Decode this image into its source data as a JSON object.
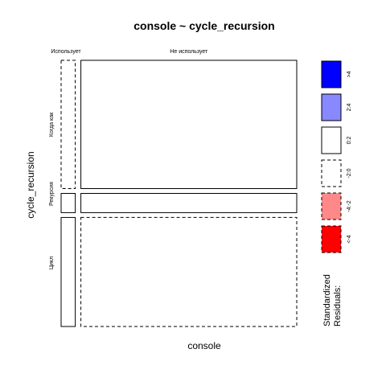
{
  "chart_data": {
    "type": "mosaic",
    "title": "console ~ cycle_recursion",
    "xlabel": "console",
    "ylabel": "cycle_recursion",
    "columns": [
      {
        "label": "Использует",
        "share": 0.068
      },
      {
        "label": "Не использует",
        "share": 0.932
      }
    ],
    "rows": [
      {
        "label": "Когда как",
        "share": 0.5
      },
      {
        "label": "Рекурсия",
        "share": 0.075
      },
      {
        "label": "Цикл",
        "share": 0.425
      }
    ],
    "cells": [
      {
        "row": "Когда как",
        "column": "Использует",
        "residual_class": "-2:0"
      },
      {
        "row": "Когда как",
        "column": "Не использует",
        "residual_class": "0:2"
      },
      {
        "row": "Рекурсия",
        "column": "Использует",
        "residual_class": "0:2"
      },
      {
        "row": "Рекурсия",
        "column": "Не использует",
        "residual_class": "0:2"
      },
      {
        "row": "Цикл",
        "column": "Использует",
        "residual_class": "0:2"
      },
      {
        "row": "Цикл",
        "column": "Не использует",
        "residual_class": "-2:0"
      }
    ],
    "legend": {
      "title_line1": "Standardized",
      "title_line2": "Residuals:",
      "placement": "right",
      "items": [
        {
          "label": ">4",
          "color": "#0000ff",
          "dashed": false
        },
        {
          "label": "2:4",
          "color": "#8888ff",
          "dashed": false
        },
        {
          "label": "0:2",
          "color": "#ffffff",
          "dashed": false
        },
        {
          "label": "-2:0",
          "color": "#ffffff",
          "dashed": true
        },
        {
          "label": "-4:-2",
          "color": "#ff8888",
          "dashed": true
        },
        {
          "label": "<-4",
          "color": "#ff0000",
          "dashed": true
        }
      ]
    }
  }
}
